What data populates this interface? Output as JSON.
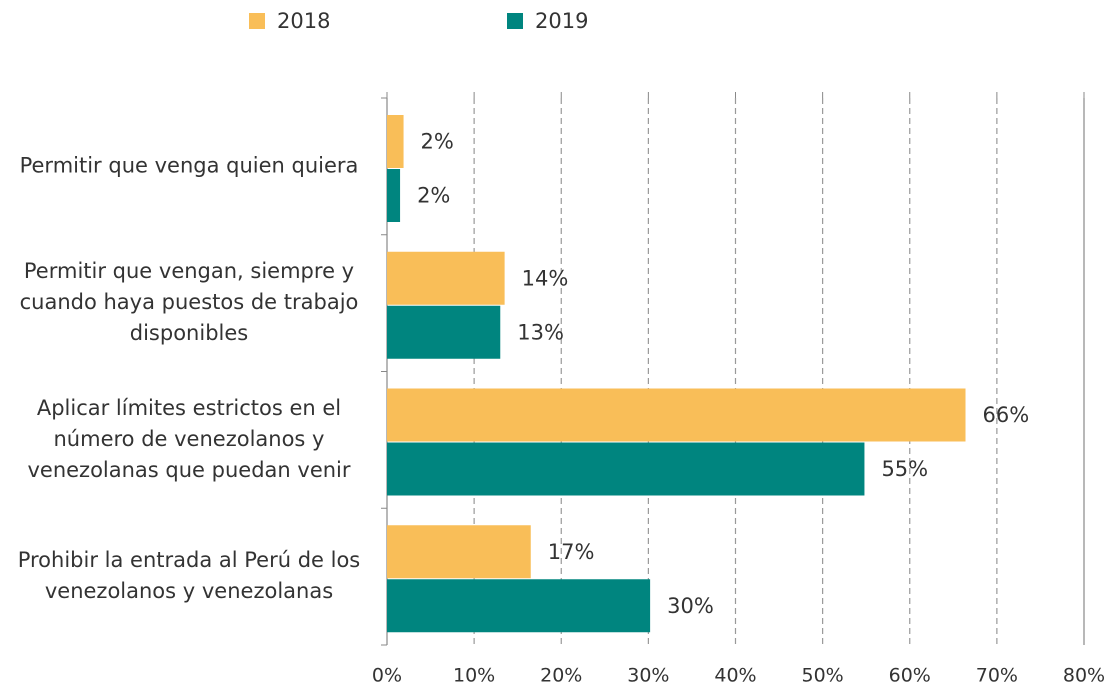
{
  "chart_data": {
    "type": "hbar",
    "categories": [
      "Permitir que venga quien quiera",
      "Permitir que vengan, siempre y cuando haya puestos de trabajo disponibles",
      "Aplicar límites estrictos en el número de venezolanos y venezolanas que puedan venir",
      "Prohibir la entrada al Perú de los venezolanos y venezolanas"
    ],
    "series": [
      {
        "name": "2018",
        "color": "#f9be58",
        "values": [
          1.9,
          13.5,
          66.4,
          16.5
        ],
        "value_labels": [
          "2%",
          "14%",
          "66%",
          "17%"
        ]
      },
      {
        "name": "2019",
        "color": "#00857f",
        "values": [
          1.5,
          13,
          54.8,
          30.2
        ],
        "value_labels": [
          "2%",
          "13%",
          "55%",
          "30%"
        ]
      }
    ],
    "xlim": [
      0,
      80
    ],
    "xticks": [
      {
        "value": 0,
        "label": "0%"
      },
      {
        "value": 10,
        "label": "10%"
      },
      {
        "value": 20,
        "label": "20%"
      },
      {
        "value": 30,
        "label": "30%"
      },
      {
        "value": 40,
        "label": "40%"
      },
      {
        "value": 50,
        "label": "50%"
      },
      {
        "value": 60,
        "label": "60%"
      },
      {
        "value": 70,
        "label": "70%"
      },
      {
        "value": 80,
        "label": "80%"
      }
    ],
    "grid": true,
    "legend": "top"
  }
}
